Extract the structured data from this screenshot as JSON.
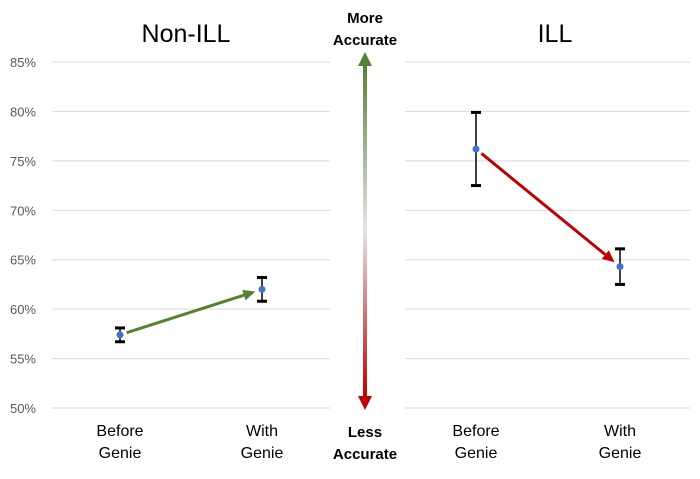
{
  "chart_data": [
    {
      "type": "scatter",
      "title": "Non-ILL",
      "categories": [
        "Before\nGenie",
        "With\nGenie"
      ],
      "series": [
        {
          "values": [
            57.4,
            62.0
          ],
          "error_low": [
            56.7,
            60.8
          ],
          "error_high": [
            58.1,
            63.2
          ]
        }
      ],
      "ylim": [
        50,
        85
      ],
      "yticks": [
        "50%",
        "55%",
        "60%",
        "65%",
        "70%",
        "75%",
        "80%",
        "85%"
      ],
      "grid": true,
      "trend": "up"
    },
    {
      "type": "scatter",
      "title": "ILL",
      "categories": [
        "Before\nGenie",
        "With\nGenie"
      ],
      "series": [
        {
          "values": [
            76.2,
            64.3
          ],
          "error_low": [
            72.5,
            62.5
          ],
          "error_high": [
            79.9,
            66.1
          ]
        }
      ],
      "ylim": [
        50,
        85
      ],
      "grid": true,
      "trend": "down"
    }
  ],
  "annotation": {
    "top_label": [
      "More",
      "Accurate"
    ],
    "bottom_label": [
      "Less",
      "Accurate"
    ]
  },
  "colors": {
    "point": "#4472c4",
    "up_arrow": "#548235",
    "down_arrow": "#c00000",
    "grid": "#d9d9d9",
    "tick_text": "#595959",
    "error_bar": "#000000"
  }
}
